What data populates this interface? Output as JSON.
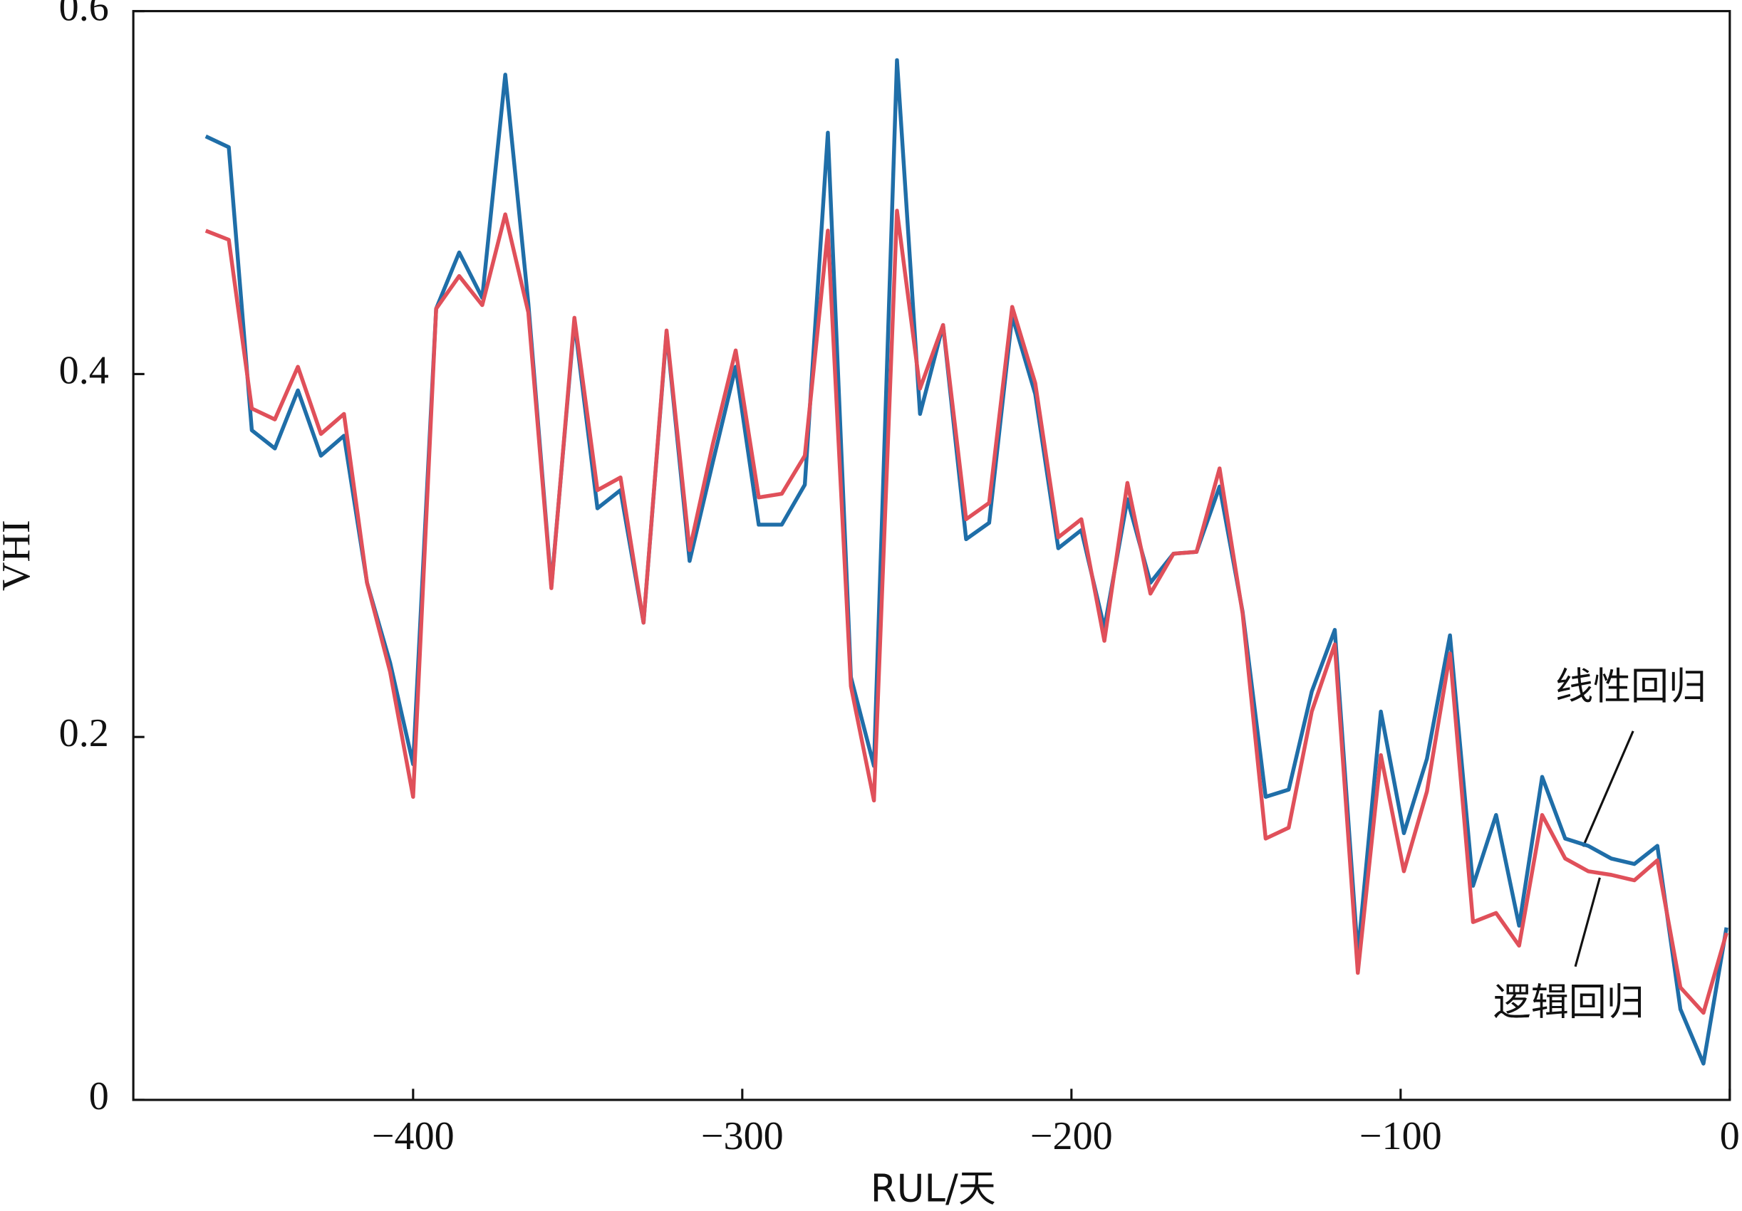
{
  "chart_data": {
    "type": "line",
    "xlabel": "RUL/天",
    "ylabel": "VHI",
    "xlim": [
      -485,
      0
    ],
    "ylim": [
      0,
      0.6
    ],
    "xticks": [
      {
        "value": -400,
        "label": "−400"
      },
      {
        "value": -300,
        "label": "−300"
      },
      {
        "value": -200,
        "label": "−200"
      },
      {
        "value": -100,
        "label": "−100"
      },
      0
    ],
    "yticks": [
      0,
      0.2,
      0.4,
      0.6
    ],
    "x": [
      -463,
      -456,
      -449,
      -442,
      -435,
      -428,
      -421,
      -414,
      -407,
      -400,
      -393,
      -386,
      -379,
      -372,
      -365,
      -358,
      -351,
      -344,
      -337,
      -330,
      -323,
      -316,
      -309,
      -302,
      -295,
      -288,
      -281,
      -274,
      -267,
      -260,
      -253,
      -246,
      -239,
      -232,
      -225,
      -218,
      -211,
      -204,
      -197,
      -190,
      -183,
      -176,
      -169,
      -162,
      -155,
      -148,
      -141,
      -134,
      -127,
      -120,
      -113,
      -106,
      -99,
      -92,
      -85,
      -78,
      -71,
      -64,
      -57,
      -50,
      -43,
      -36,
      -29,
      -22,
      -15,
      -8,
      -1
    ],
    "series": [
      {
        "name": "线性回归",
        "color": "#1f6ea8",
        "values": [
          0.531,
          0.525,
          0.369,
          0.359,
          0.391,
          0.355,
          0.366,
          0.285,
          0.241,
          0.185,
          0.436,
          0.467,
          0.442,
          0.565,
          0.439,
          0.283,
          0.429,
          0.326,
          0.336,
          0.263,
          0.423,
          0.297,
          0.351,
          0.404,
          0.317,
          0.317,
          0.339,
          0.533,
          0.233,
          0.184,
          0.573,
          0.378,
          0.427,
          0.309,
          0.318,
          0.432,
          0.389,
          0.304,
          0.314,
          0.26,
          0.331,
          0.285,
          0.301,
          0.302,
          0.338,
          0.269,
          0.167,
          0.171,
          0.225,
          0.259,
          0.08,
          0.214,
          0.147,
          0.188,
          0.256,
          0.118,
          0.157,
          0.096,
          0.178,
          0.144,
          0.14,
          0.133,
          0.13,
          0.14,
          0.05,
          0.02,
          0.095
        ]
      },
      {
        "name": "逻辑回归",
        "color": "#e0505a",
        "values": [
          0.479,
          0.474,
          0.381,
          0.375,
          0.404,
          0.367,
          0.378,
          0.285,
          0.236,
          0.167,
          0.436,
          0.454,
          0.438,
          0.488,
          0.434,
          0.282,
          0.431,
          0.336,
          0.343,
          0.263,
          0.424,
          0.303,
          0.361,
          0.413,
          0.332,
          0.334,
          0.355,
          0.479,
          0.228,
          0.165,
          0.49,
          0.392,
          0.427,
          0.32,
          0.329,
          0.437,
          0.395,
          0.31,
          0.32,
          0.253,
          0.34,
          0.279,
          0.301,
          0.302,
          0.348,
          0.268,
          0.144,
          0.15,
          0.214,
          0.251,
          0.07,
          0.19,
          0.126,
          0.17,
          0.246,
          0.098,
          0.103,
          0.085,
          0.157,
          0.133,
          0.126,
          0.124,
          0.121,
          0.132,
          0.062,
          0.048,
          0.092
        ]
      }
    ]
  }
}
